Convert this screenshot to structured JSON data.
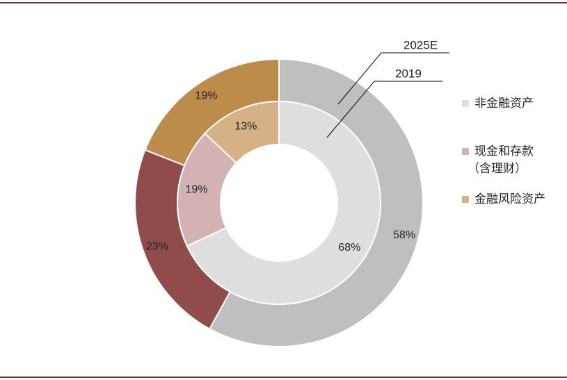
{
  "chart_data": {
    "type": "donut",
    "rings": [
      {
        "name": "2025E",
        "position": "outer",
        "slices": [
          {
            "category": "非金融资产",
            "value": 58,
            "label": "58%"
          },
          {
            "category": "现金和存款（含理财）",
            "value": 23,
            "label": "23%"
          },
          {
            "category": "金融风险资产",
            "value": 19,
            "label": "19%"
          }
        ]
      },
      {
        "name": "2019",
        "position": "inner",
        "slices": [
          {
            "category": "非金融资产",
            "value": 68,
            "label": "68%"
          },
          {
            "category": "现金和存款（含理财）",
            "value": 19,
            "label": "19%"
          },
          {
            "category": "金融风险资产",
            "value": 13,
            "label": "13%"
          }
        ]
      }
    ],
    "legend": [
      {
        "label": "非金融资产",
        "label_line2": "",
        "outer_color": "#bfbfbf",
        "inner_color": "#dedede",
        "swatch": "#dedede"
      },
      {
        "label": "现金和存款",
        "label_line2": "（含理财）",
        "outer_color": "#904b4b",
        "inner_color": "#d3b2b4",
        "swatch": "#d3b2b4"
      },
      {
        "label": "金融风险资产",
        "label_line2": "",
        "outer_color": "#bd8c4b",
        "inner_color": "#d4b285",
        "swatch": "#d4b285"
      }
    ],
    "legend_position": "right",
    "colors": {
      "rule": "#8b2e2e",
      "text": "#222222"
    }
  }
}
